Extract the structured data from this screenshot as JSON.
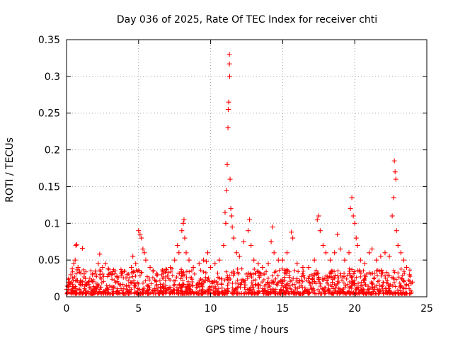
{
  "chart_data": {
    "type": "scatter",
    "title": "Day 036 of 2025, Rate Of TEC Index for receiver chti",
    "xlabel": "GPS time / hours",
    "ylabel": "ROTI / TECUs",
    "xlim": [
      0,
      25
    ],
    "ylim": [
      0,
      0.35
    ],
    "x_ticks": [
      0,
      5,
      10,
      15,
      20,
      25
    ],
    "y_ticks": [
      0,
      0.05,
      0.1,
      0.15,
      0.2,
      0.25,
      0.3,
      0.35
    ],
    "x_tick_labels": [
      "0",
      "5",
      "10",
      "15",
      "20",
      "25"
    ],
    "y_tick_labels": [
      "0",
      "0.05",
      "0.1",
      "0.15",
      "0.2",
      "0.25",
      "0.3",
      "0.35"
    ],
    "grid": true,
    "marker": "plus",
    "color": "#ff0000",
    "series": [
      {
        "name": "ROTI",
        "points": [
          [
            0.0,
            0.01
          ],
          [
            0.1,
            0.015
          ],
          [
            0.2,
            0.02
          ],
          [
            0.3,
            0.03
          ],
          [
            0.4,
            0.038
          ],
          [
            0.5,
            0.045
          ],
          [
            0.6,
            0.05
          ],
          [
            0.65,
            0.07
          ],
          [
            0.7,
            0.071
          ],
          [
            0.8,
            0.04
          ],
          [
            0.9,
            0.035
          ],
          [
            1.0,
            0.032
          ],
          [
            1.1,
            0.066
          ],
          [
            1.3,
            0.025
          ],
          [
            1.5,
            0.02
          ],
          [
            1.8,
            0.03
          ],
          [
            2.0,
            0.035
          ],
          [
            2.2,
            0.045
          ],
          [
            2.3,
            0.058
          ],
          [
            2.5,
            0.04
          ],
          [
            2.7,
            0.045
          ],
          [
            2.9,
            0.038
          ],
          [
            3.1,
            0.03
          ],
          [
            3.5,
            0.028
          ],
          [
            3.8,
            0.032
          ],
          [
            4.2,
            0.03
          ],
          [
            4.5,
            0.04
          ],
          [
            4.6,
            0.055
          ],
          [
            4.8,
            0.045
          ],
          [
            5.0,
            0.09
          ],
          [
            5.1,
            0.085
          ],
          [
            5.2,
            0.08
          ],
          [
            5.3,
            0.065
          ],
          [
            5.4,
            0.06
          ],
          [
            5.5,
            0.05
          ],
          [
            5.8,
            0.04
          ],
          [
            6.0,
            0.035
          ],
          [
            6.3,
            0.03
          ],
          [
            6.6,
            0.03
          ],
          [
            6.9,
            0.035
          ],
          [
            7.2,
            0.04
          ],
          [
            7.5,
            0.05
          ],
          [
            7.7,
            0.07
          ],
          [
            7.8,
            0.06
          ],
          [
            8.0,
            0.09
          ],
          [
            8.1,
            0.1
          ],
          [
            8.15,
            0.105
          ],
          [
            8.2,
            0.08
          ],
          [
            8.3,
            0.06
          ],
          [
            8.5,
            0.05
          ],
          [
            8.8,
            0.04
          ],
          [
            9.2,
            0.045
          ],
          [
            9.5,
            0.05
          ],
          [
            9.7,
            0.048
          ],
          [
            9.8,
            0.06
          ],
          [
            10.0,
            0.04
          ],
          [
            10.3,
            0.045
          ],
          [
            10.6,
            0.05
          ],
          [
            10.9,
            0.07
          ],
          [
            11.0,
            0.115
          ],
          [
            11.05,
            0.1
          ],
          [
            11.1,
            0.145
          ],
          [
            11.15,
            0.18
          ],
          [
            11.2,
            0.23
          ],
          [
            11.22,
            0.255
          ],
          [
            11.25,
            0.265
          ],
          [
            11.3,
            0.33
          ],
          [
            11.3,
            0.317
          ],
          [
            11.32,
            0.3
          ],
          [
            11.35,
            0.16
          ],
          [
            11.4,
            0.12
          ],
          [
            11.45,
            0.11
          ],
          [
            11.5,
            0.095
          ],
          [
            11.6,
            0.08
          ],
          [
            11.8,
            0.06
          ],
          [
            12.0,
            0.055
          ],
          [
            12.3,
            0.075
          ],
          [
            12.6,
            0.09
          ],
          [
            12.7,
            0.105
          ],
          [
            12.8,
            0.07
          ],
          [
            13.0,
            0.05
          ],
          [
            13.3,
            0.045
          ],
          [
            13.6,
            0.04
          ],
          [
            14.0,
            0.045
          ],
          [
            14.2,
            0.075
          ],
          [
            14.3,
            0.095
          ],
          [
            14.4,
            0.06
          ],
          [
            14.7,
            0.05
          ],
          [
            15.0,
            0.05
          ],
          [
            15.3,
            0.06
          ],
          [
            15.6,
            0.088
          ],
          [
            15.7,
            0.08
          ],
          [
            16.0,
            0.045
          ],
          [
            16.4,
            0.04
          ],
          [
            16.8,
            0.04
          ],
          [
            17.2,
            0.05
          ],
          [
            17.4,
            0.105
          ],
          [
            17.5,
            0.11
          ],
          [
            17.6,
            0.09
          ],
          [
            17.8,
            0.07
          ],
          [
            18.0,
            0.06
          ],
          [
            18.3,
            0.05
          ],
          [
            18.6,
            0.06
          ],
          [
            18.8,
            0.085
          ],
          [
            19.0,
            0.065
          ],
          [
            19.3,
            0.05
          ],
          [
            19.6,
            0.06
          ],
          [
            19.7,
            0.12
          ],
          [
            19.8,
            0.135
          ],
          [
            19.9,
            0.11
          ],
          [
            20.0,
            0.1
          ],
          [
            20.1,
            0.08
          ],
          [
            20.2,
            0.07
          ],
          [
            20.4,
            0.05
          ],
          [
            20.7,
            0.045
          ],
          [
            21.0,
            0.06
          ],
          [
            21.2,
            0.065
          ],
          [
            21.5,
            0.05
          ],
          [
            21.8,
            0.055
          ],
          [
            22.1,
            0.06
          ],
          [
            22.4,
            0.055
          ],
          [
            22.6,
            0.11
          ],
          [
            22.7,
            0.135
          ],
          [
            22.75,
            0.185
          ],
          [
            22.8,
            0.17
          ],
          [
            22.85,
            0.16
          ],
          [
            22.9,
            0.09
          ],
          [
            23.0,
            0.07
          ],
          [
            23.2,
            0.06
          ],
          [
            23.4,
            0.05
          ],
          [
            23.6,
            0.04
          ],
          [
            23.8,
            0.03
          ],
          [
            24.0,
            0.02
          ]
        ]
      }
    ]
  }
}
